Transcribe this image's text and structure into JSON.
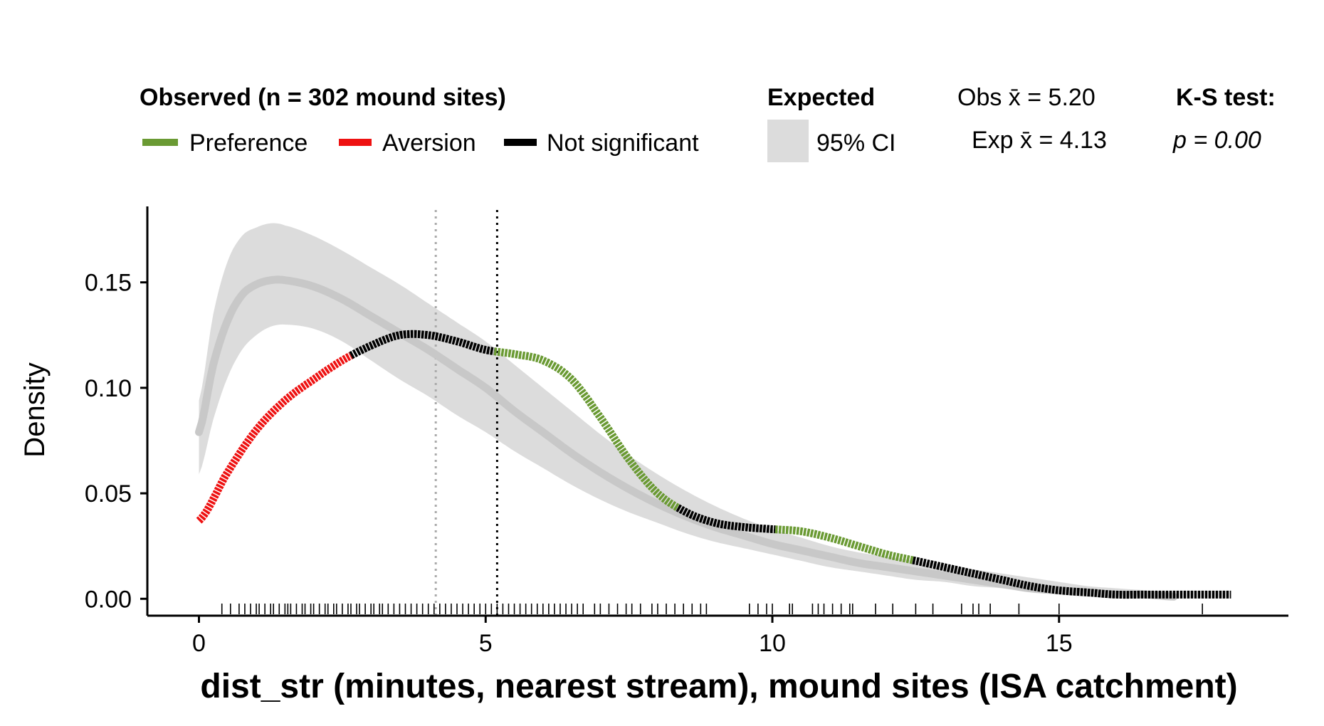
{
  "legend": {
    "observed_title": "Observed (n = 302 mound sites)",
    "observed_items": [
      {
        "label": "Preference",
        "color": "#6a9a33"
      },
      {
        "label": "Aversion",
        "color": "#ee1111"
      },
      {
        "label": "Not significant",
        "color": "#000000"
      }
    ],
    "expected_title": "Expected",
    "expected_item": "95% CI",
    "ci_color": "#dcdcdc",
    "obs_mean_label": "Obs x̄ = 5.20",
    "exp_mean_label": "Exp x̄ = 4.13",
    "ks_title": "K-S test:",
    "ks_p": "p = 0.00"
  },
  "chart_data": {
    "type": "line",
    "xlabel": "dist_str (minutes, nearest stream), mound sites (ISA catchment)",
    "ylabel": "Density",
    "xlim": [
      -0.9,
      19.0
    ],
    "ylim": [
      -0.008,
      0.186
    ],
    "x_ticks": [
      0,
      5,
      10,
      15
    ],
    "y_ticks": [
      0.0,
      0.05,
      0.1,
      0.15
    ],
    "x_tick_labels": [
      "0",
      "5",
      "10",
      "15"
    ],
    "y_tick_labels": [
      "0.00",
      "0.05",
      "0.10",
      "0.15"
    ],
    "obs_mean": 5.2,
    "exp_mean": 4.13,
    "colors": {
      "preference": "#6a9a33",
      "aversion": "#ee1111",
      "not_significant": "#000000",
      "expected_line": "#c8c8c8",
      "ci": "#dcdcdc",
      "exp_mean_line": "#aaaaaa",
      "obs_mean_line": "#000000"
    },
    "observed": {
      "x": [
        0,
        0.5,
        1,
        1.5,
        2,
        2.5,
        3,
        3.5,
        4,
        4.5,
        5,
        5.5,
        6,
        6.5,
        7,
        7.5,
        8,
        8.5,
        9,
        9.5,
        10,
        10.5,
        11,
        11.5,
        12,
        12.5,
        13,
        13.5,
        14,
        14.5,
        15,
        15.5,
        16,
        16.5,
        17,
        17.5,
        18
      ],
      "y": [
        0.037,
        0.06,
        0.08,
        0.094,
        0.104,
        0.113,
        0.12,
        0.125,
        0.125,
        0.122,
        0.118,
        0.116,
        0.113,
        0.104,
        0.086,
        0.066,
        0.05,
        0.041,
        0.036,
        0.034,
        0.033,
        0.032,
        0.029,
        0.025,
        0.021,
        0.018,
        0.015,
        0.012,
        0.009,
        0.006,
        0.004,
        0.003,
        0.002,
        0.002,
        0.002,
        0.002,
        0.002
      ],
      "segments": [
        {
          "from": 0,
          "to": 2.65,
          "status": "Aversion"
        },
        {
          "from": 2.65,
          "to": 5.15,
          "status": "Not significant"
        },
        {
          "from": 5.15,
          "to": 8.35,
          "status": "Preference"
        },
        {
          "from": 8.35,
          "to": 10.05,
          "status": "Not significant"
        },
        {
          "from": 10.05,
          "to": 12.45,
          "status": "Preference"
        },
        {
          "from": 12.45,
          "to": 18,
          "status": "Not significant"
        }
      ]
    },
    "expected": {
      "x": [
        0,
        0.25,
        0.5,
        0.75,
        1,
        1.25,
        1.5,
        2,
        2.5,
        3,
        3.5,
        4,
        4.5,
        5,
        5.5,
        6,
        6.5,
        7,
        7.5,
        8,
        8.5,
        9,
        9.5,
        10,
        10.5,
        11,
        11.5,
        12,
        12.5,
        13,
        13.5,
        14,
        14.5,
        15,
        15.5,
        16,
        16.5,
        17
      ],
      "mean": [
        0.079,
        0.111,
        0.132,
        0.144,
        0.149,
        0.151,
        0.151,
        0.148,
        0.142,
        0.134,
        0.126,
        0.118,
        0.109,
        0.1,
        0.089,
        0.079,
        0.069,
        0.06,
        0.052,
        0.045,
        0.039,
        0.034,
        0.03,
        0.026,
        0.023,
        0.02,
        0.017,
        0.015,
        0.013,
        0.011,
        0.009,
        0.007,
        0.005,
        0.004,
        0.003,
        0.002,
        0.002,
        0.001
      ],
      "lower": [
        0.059,
        0.085,
        0.105,
        0.118,
        0.125,
        0.129,
        0.13,
        0.128,
        0.122,
        0.113,
        0.104,
        0.096,
        0.087,
        0.079,
        0.07,
        0.062,
        0.054,
        0.047,
        0.041,
        0.036,
        0.031,
        0.027,
        0.024,
        0.021,
        0.018,
        0.015,
        0.013,
        0.011,
        0.009,
        0.008,
        0.006,
        0.005,
        0.003,
        0.002,
        0.001,
        0.001,
        0.001,
        0.0
      ],
      "upper": [
        0.094,
        0.135,
        0.16,
        0.172,
        0.176,
        0.178,
        0.177,
        0.172,
        0.165,
        0.157,
        0.149,
        0.14,
        0.131,
        0.122,
        0.111,
        0.1,
        0.089,
        0.078,
        0.068,
        0.059,
        0.051,
        0.044,
        0.038,
        0.033,
        0.029,
        0.025,
        0.022,
        0.02,
        0.018,
        0.016,
        0.014,
        0.012,
        0.01,
        0.008,
        0.006,
        0.005,
        0.004,
        0.003
      ]
    },
    "rug": [
      0.4,
      0.55,
      0.7,
      0.8,
      0.9,
      1.0,
      1.05,
      1.15,
      1.25,
      1.3,
      1.4,
      1.5,
      1.55,
      1.6,
      1.7,
      1.8,
      1.85,
      1.95,
      2.0,
      2.1,
      2.2,
      2.25,
      2.35,
      2.4,
      2.5,
      2.6,
      2.65,
      2.75,
      2.8,
      2.9,
      3.0,
      3.05,
      3.15,
      3.2,
      3.3,
      3.4,
      3.5,
      3.6,
      3.7,
      3.8,
      3.9,
      4.0,
      4.1,
      4.2,
      4.3,
      4.4,
      4.5,
      4.6,
      4.7,
      4.8,
      4.9,
      5.0,
      5.1,
      5.2,
      5.3,
      5.4,
      5.5,
      5.6,
      5.7,
      5.8,
      5.9,
      6.0,
      6.1,
      6.2,
      6.3,
      6.4,
      6.5,
      6.6,
      6.7,
      6.9,
      7.0,
      7.15,
      7.3,
      7.45,
      7.55,
      7.7,
      7.9,
      8.0,
      8.15,
      8.3,
      8.45,
      8.6,
      8.75,
      8.85,
      9.6,
      9.75,
      9.9,
      10.0,
      10.3,
      10.35,
      10.7,
      10.8,
      10.9,
      11.05,
      11.2,
      11.35,
      11.4,
      11.8,
      12.1,
      12.5,
      12.8,
      13.3,
      13.5,
      13.6,
      13.8,
      14.3,
      15.0,
      17.5
    ]
  }
}
